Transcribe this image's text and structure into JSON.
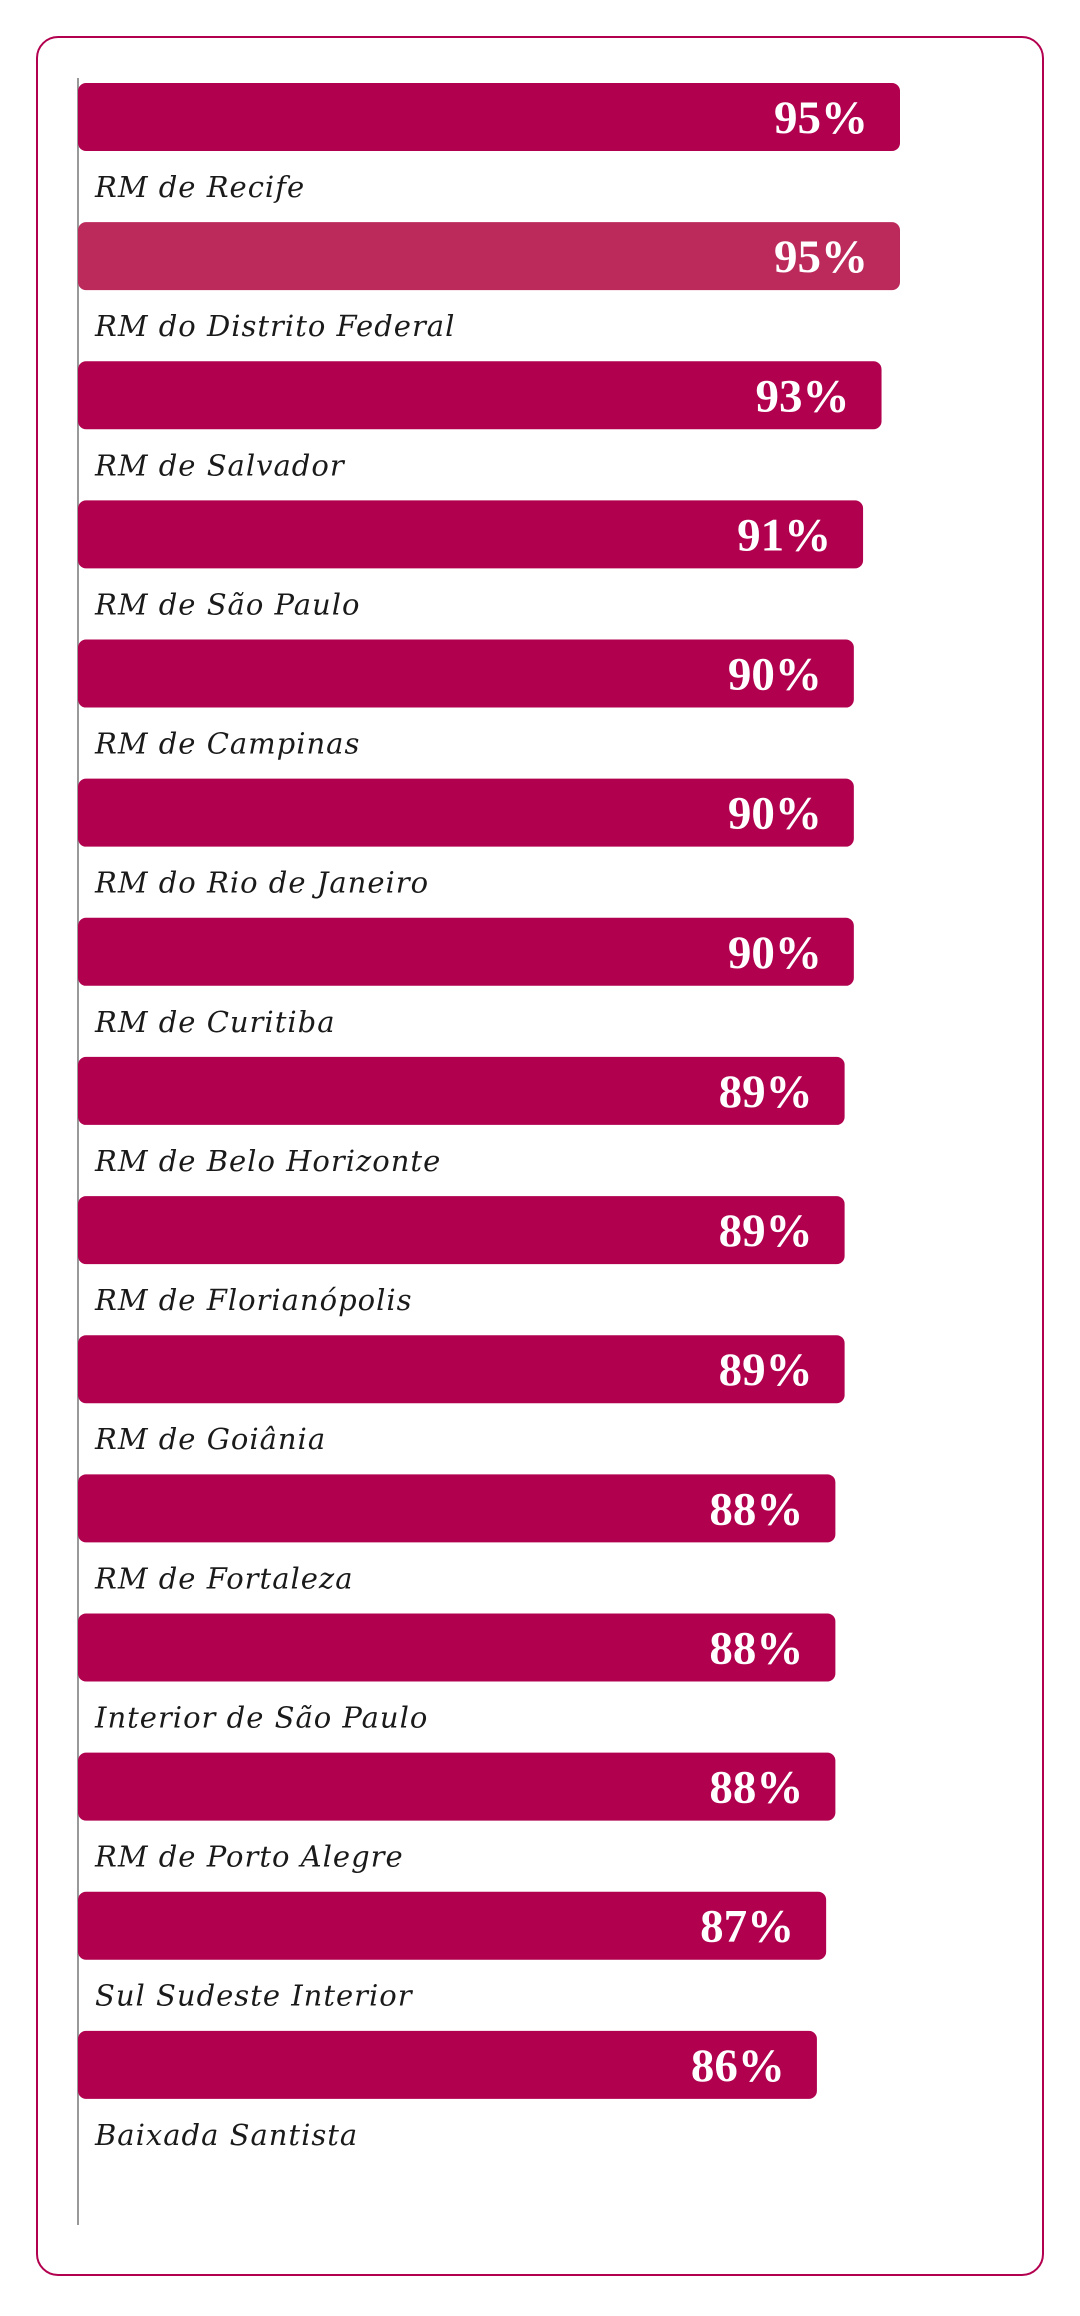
{
  "colors": {
    "bar": "#b0004e",
    "bar_highlight": "#bb2a5b",
    "frame": "#b2004f",
    "axis": "#999999"
  },
  "chart_data": {
    "type": "bar",
    "orientation": "horizontal",
    "categories": [
      "RM de Recife",
      "RM do Distrito Federal",
      "RM de Salvador",
      "RM de São Paulo",
      "RM de Campinas",
      "RM do Rio de Janeiro",
      "RM de Curitiba",
      "RM de Belo Horizonte",
      "RM de Florianópolis",
      "RM de Goiânia",
      "RM de Fortaleza",
      "Interior de São Paulo",
      "RM de Porto Alegre",
      "Sul Sudeste Interior",
      "Baixada Santista"
    ],
    "values": [
      95,
      95,
      93,
      91,
      90,
      90,
      90,
      89,
      89,
      89,
      88,
      88,
      88,
      87,
      86
    ],
    "value_labels": [
      "95%",
      "95%",
      "93%",
      "91%",
      "90%",
      "90%",
      "90%",
      "89%",
      "89%",
      "89%",
      "88%",
      "88%",
      "88%",
      "87%",
      "86%"
    ],
    "highlighted": [
      1
    ],
    "unit": "%",
    "grid": false,
    "legend": "none"
  }
}
